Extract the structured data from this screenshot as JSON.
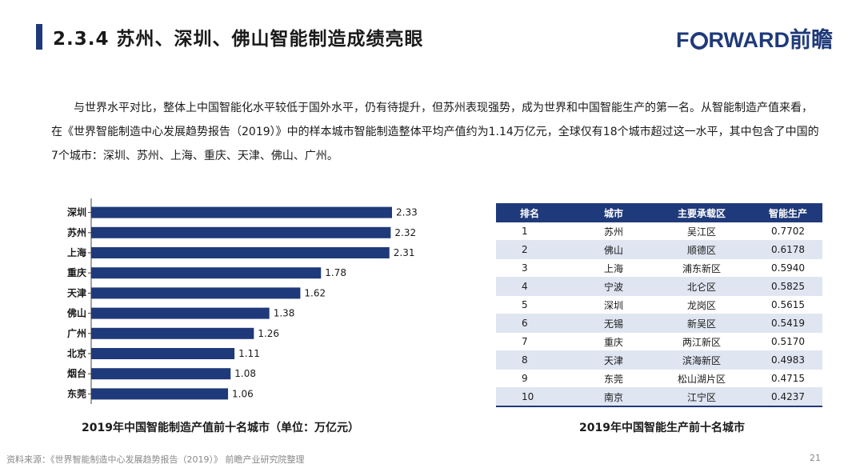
{
  "header": {
    "title": "2.3.4 苏州、深圳、佛山智能制造成绩亮眼",
    "logo_text_pre": "F",
    "logo_text_post": "RWARD前瞻",
    "accent_color": "#1f3a7a"
  },
  "body": {
    "paragraph": "与世界水平对比，整体上中国智能化水平较低于国外水平，仍有待提升，但苏州表现强势，成为世界和中国智能生产的第一名。从智能制造产值来看，在《世界智能制造中心发展趋势报告（2019）》中的样本城市智能制造整体平均产值约为1.14万亿元，全球仅有18个城市超过这一水平，其中包含了中国的7个城市：深圳、苏州、上海、重庆、天津、佛山、广州。"
  },
  "chart_data": {
    "type": "bar",
    "orientation": "horizontal",
    "categories": [
      "深圳",
      "苏州",
      "上海",
      "重庆",
      "天津",
      "佛山",
      "广州",
      "北京",
      "烟台",
      "东莞"
    ],
    "values": [
      2.33,
      2.32,
      2.31,
      1.78,
      1.62,
      1.38,
      1.26,
      1.11,
      1.08,
      1.06
    ],
    "value_labels": [
      "2.33",
      "2.32",
      "2.31",
      "1.78",
      "1.62",
      "1.38",
      "1.26",
      "1.11",
      "1.08",
      "1.06"
    ],
    "title": "2019年中国智能制造产值前十名城市（单位：万亿元）",
    "xlim": [
      0,
      2.33
    ],
    "grid": false,
    "bar_color": "#1f3a7a"
  },
  "table": {
    "caption": "2019年中国智能生产前十名城市",
    "headers": [
      "排名",
      "城市",
      "主要承载区",
      "智能生产"
    ],
    "rows": [
      [
        "1",
        "苏州",
        "吴江区",
        "0.7702"
      ],
      [
        "2",
        "佛山",
        "顺德区",
        "0.6178"
      ],
      [
        "3",
        "上海",
        "浦东新区",
        "0.5940"
      ],
      [
        "4",
        "宁波",
        "北仑区",
        "0.5825"
      ],
      [
        "5",
        "深圳",
        "龙岗区",
        "0.5615"
      ],
      [
        "6",
        "无锡",
        "新吴区",
        "0.5419"
      ],
      [
        "7",
        "重庆",
        "两江新区",
        "0.5170"
      ],
      [
        "8",
        "天津",
        "滨海新区",
        "0.4983"
      ],
      [
        "9",
        "东莞",
        "松山湖片区",
        "0.4715"
      ],
      [
        "10",
        "南京",
        "江宁区",
        "0.4237"
      ]
    ]
  },
  "footer": {
    "source": "资料来源：《世界智能制造中心发展趋势报告（2019）》 前瞻产业研究院整理",
    "page_number": "21"
  }
}
